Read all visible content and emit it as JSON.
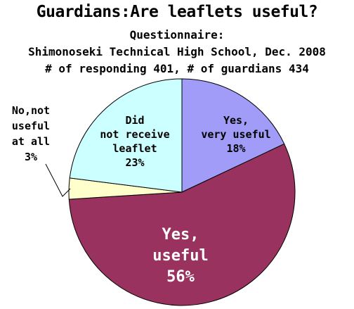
{
  "header": {
    "title": "Guardians:Are leaflets useful?",
    "subtitle_1": "Questionnaire:",
    "subtitle_2": "Shimonoseki Technical High School, Dec. 2008",
    "subtitle_3": "# of responding 401, # of guardians 434"
  },
  "chart_data": {
    "type": "pie",
    "title": "Guardians:Are leaflets useful?",
    "start": "12 o'clock, clockwise",
    "slices": [
      {
        "label_lines": [
          "Yes,",
          "very useful"
        ],
        "value": 18,
        "value_label": "18%",
        "color": "#a09cf7"
      },
      {
        "label_lines": [
          "Yes,",
          "useful"
        ],
        "value": 56,
        "value_label": "56%",
        "color": "#99325f"
      },
      {
        "label_lines": [
          "No,not",
          "useful",
          "at all"
        ],
        "value": 3,
        "value_label": "3%",
        "color": "#ffffcc"
      },
      {
        "label_lines": [
          "Did",
          "not receive",
          "leaflet"
        ],
        "value": 23,
        "value_label": "23%",
        "color": "#ccffff"
      }
    ]
  }
}
